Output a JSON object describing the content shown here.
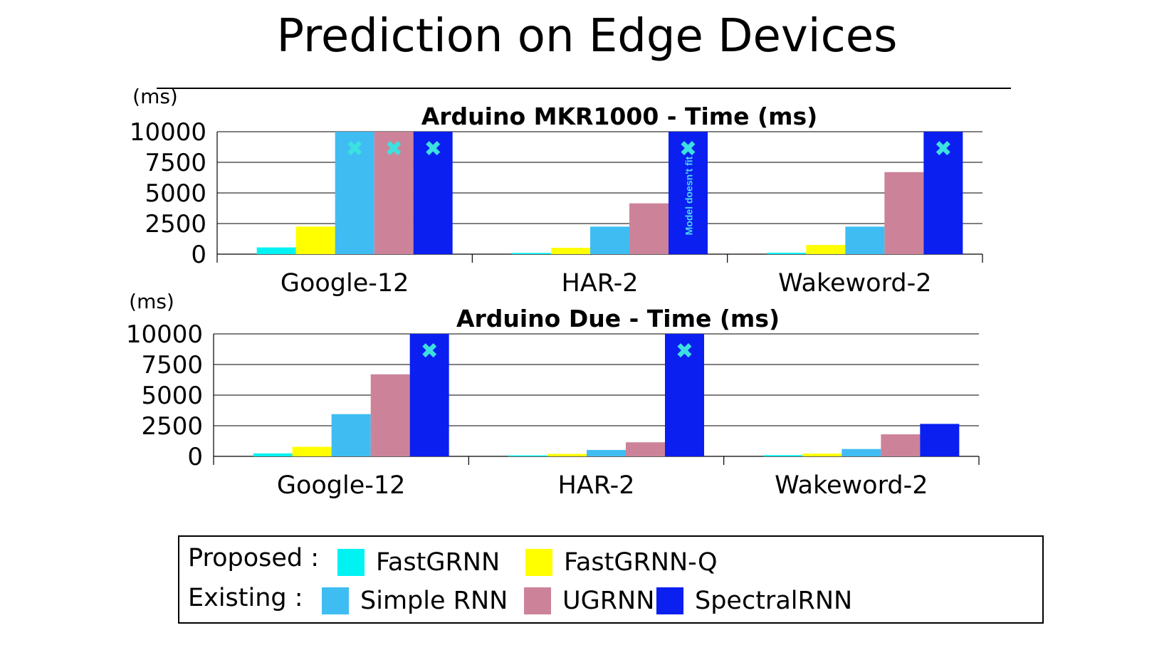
{
  "title": "Prediction on Edge Devices",
  "legend": {
    "proposed_label": "Proposed :",
    "existing_label": "Existing :",
    "items": [
      {
        "name": "FastGRNN",
        "color": "#00f2f2"
      },
      {
        "name": "FastGRNN-Q",
        "color": "#ffff00"
      },
      {
        "name": "Simple RNN",
        "color": "#3fbdf2"
      },
      {
        "name": "UGRNN",
        "color": "#cc8399"
      },
      {
        "name": "SpectralRNN",
        "color": "#0a1ff0"
      }
    ]
  },
  "chart_data": [
    {
      "type": "bar",
      "title": "Arduino MKR1000 - Time (ms)",
      "ylabel": "(ms)",
      "ylim": [
        0,
        10000
      ],
      "yticks": [
        0,
        2500,
        5000,
        7500,
        10000
      ],
      "grid": true,
      "categories": [
        "Google-12",
        "HAR-2",
        "Wakeword-2"
      ],
      "series": [
        {
          "name": "FastGRNN",
          "color": "#00f2f2",
          "values": [
            550,
            100,
            120
          ]
        },
        {
          "name": "FastGRNN-Q",
          "color": "#ffff00",
          "values": [
            2250,
            520,
            750
          ]
        },
        {
          "name": "Simple RNN",
          "color": "#3fbdf2",
          "values": [
            10000,
            2250,
            2250
          ]
        },
        {
          "name": "UGRNN",
          "color": "#cc8399",
          "values": [
            10000,
            4150,
            6700
          ]
        },
        {
          "name": "SpectralRNN",
          "color": "#0a1ff0",
          "values": [
            10000,
            10000,
            10000
          ]
        }
      ],
      "does_not_fit": [
        {
          "category": 0,
          "series": 2
        },
        {
          "category": 0,
          "series": 3
        },
        {
          "category": 0,
          "series": 4
        },
        {
          "category": 1,
          "series": 4
        },
        {
          "category": 2,
          "series": 4
        }
      ],
      "annotation": {
        "text": "Model doesn't fit",
        "category": 1,
        "series": 4
      }
    },
    {
      "type": "bar",
      "title": "Arduino Due - Time (ms)",
      "ylabel": "(ms)",
      "ylim": [
        0,
        10000
      ],
      "yticks": [
        0,
        2500,
        5000,
        7500,
        10000
      ],
      "grid": true,
      "categories": [
        "Google-12",
        "HAR-2",
        "Wakeword-2"
      ],
      "series": [
        {
          "name": "FastGRNN",
          "color": "#00f2f2",
          "values": [
            240,
            80,
            100
          ]
        },
        {
          "name": "FastGRNN-Q",
          "color": "#ffff00",
          "values": [
            780,
            200,
            220
          ]
        },
        {
          "name": "Simple RNN",
          "color": "#3fbdf2",
          "values": [
            3450,
            520,
            600
          ]
        },
        {
          "name": "UGRNN",
          "color": "#cc8399",
          "values": [
            6700,
            1150,
            1800
          ]
        },
        {
          "name": "SpectralRNN",
          "color": "#0a1ff0",
          "values": [
            10000,
            10000,
            2650
          ]
        }
      ],
      "does_not_fit": [
        {
          "category": 0,
          "series": 4
        },
        {
          "category": 1,
          "series": 4
        }
      ]
    }
  ]
}
